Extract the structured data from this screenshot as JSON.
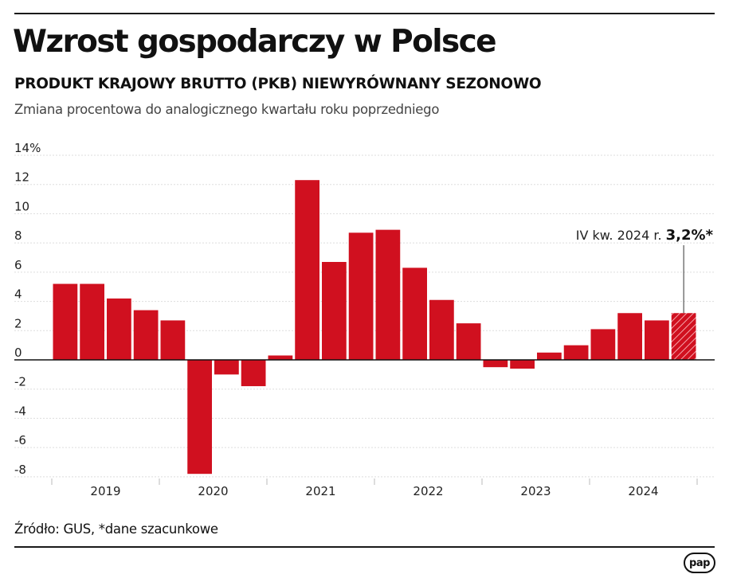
{
  "header": {
    "title": "Wzrost gospodarczy w Polsce",
    "subtitle": "PRODUKT KRAJOWY BRUTTO (PKB) NIEWYRÓWNANY SEZONOWO",
    "description": "Zmiana procentowa do analogicznego kwartału roku poprzedniego"
  },
  "footer": {
    "source": "Źródło: GUS, *dane szacunkowe",
    "logo": "pap"
  },
  "colors": {
    "bar": "#d0101f",
    "grid": "#dddddd",
    "axis": "#111111"
  },
  "chart_data": {
    "type": "bar",
    "title": "Wzrost gospodarczy w Polsce",
    "xlabel": "",
    "ylabel": "",
    "ylim": [
      -8,
      14
    ],
    "y_ticks": [
      14,
      12,
      10,
      8,
      6,
      4,
      2,
      0,
      -2,
      -4,
      -6,
      -8
    ],
    "y_tick_labels": [
      "14%",
      "12",
      "10",
      "8",
      "6",
      "4",
      "2",
      "0",
      "-2",
      "-4",
      "-6",
      "-8"
    ],
    "year_labels": [
      "2019",
      "2020",
      "2021",
      "2022",
      "2023",
      "2024"
    ],
    "categories": [
      "I 2019",
      "II 2019",
      "III 2019",
      "IV 2019",
      "I 2020",
      "II 2020",
      "III 2020",
      "IV 2020",
      "I 2021",
      "II 2021",
      "III 2021",
      "IV 2021",
      "I 2022",
      "II 2022",
      "III 2022",
      "IV 2022",
      "I 2023",
      "II 2023",
      "III 2023",
      "IV 2023",
      "I 2024",
      "II 2024",
      "III 2024",
      "IV 2024"
    ],
    "values": [
      5.2,
      5.2,
      4.2,
      3.4,
      2.7,
      -7.8,
      -1.0,
      -1.8,
      0.3,
      12.3,
      6.7,
      8.7,
      8.9,
      6.3,
      4.1,
      2.5,
      -0.5,
      -0.6,
      0.5,
      1.0,
      2.1,
      3.2,
      2.7,
      3.2
    ],
    "estimated": [
      false,
      false,
      false,
      false,
      false,
      false,
      false,
      false,
      false,
      false,
      false,
      false,
      false,
      false,
      false,
      false,
      false,
      false,
      false,
      false,
      false,
      false,
      false,
      true
    ],
    "annotation": {
      "label": "IV kw. 2024 r. ",
      "value_text": "3,2%*",
      "target_index": 23
    },
    "grid": true
  }
}
